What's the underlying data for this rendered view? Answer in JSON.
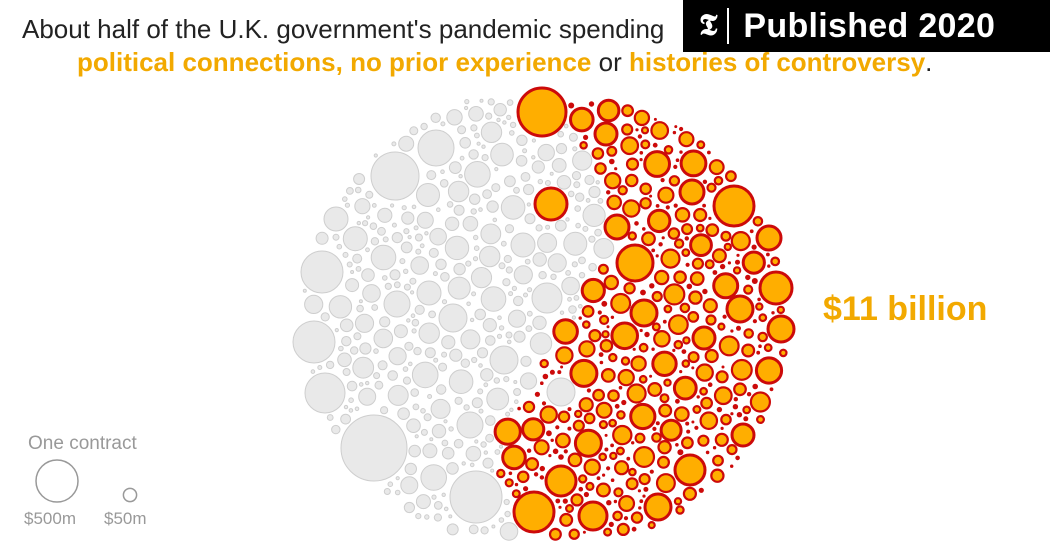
{
  "badge": {
    "logo": "𝕿",
    "text": "Published 2020"
  },
  "headline": {
    "line1": "About half of the U.K. government's pandemic spending",
    "keyword_1": "political connections,",
    "keyword_2": "no prior experience",
    "connector": "or",
    "keyword_3": "histories of controversy",
    "end": "."
  },
  "chart_data": {
    "type": "packed bubble",
    "total_label": "$11 billion",
    "colors": {
      "flagged_fill": "#ffae00",
      "flagged_stroke": "#cc0a0a",
      "other_fill": "#e9e9e9",
      "other_stroke": "#cecece",
      "label": "#f2a900"
    },
    "legend": {
      "title": "One contract",
      "items": [
        {
          "value_musd": 500,
          "label": "$500m"
        },
        {
          "value_musd": 50,
          "label": "$50m"
        }
      ]
    }
  }
}
